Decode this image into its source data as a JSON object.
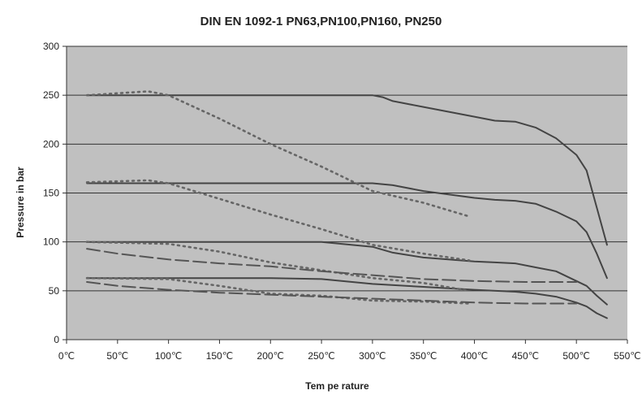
{
  "chart_data": {
    "type": "line",
    "title": "DIN EN 1092-1 PN63,PN100,PN160, PN250",
    "xlabel": "Tem pe rature",
    "ylabel": "Pressure in bar",
    "xlim": [
      0,
      550
    ],
    "ylim": [
      0,
      300
    ],
    "x_ticks": [
      0,
      50,
      100,
      150,
      200,
      250,
      300,
      350,
      400,
      450,
      500,
      550
    ],
    "x_tick_labels": [
      "0℃",
      "50℃",
      "100℃",
      "150℃",
      "200℃",
      "250℃",
      "300℃",
      "350℃",
      "400℃",
      "450℃",
      "500℃",
      "550℃"
    ],
    "y_ticks": [
      0,
      50,
      100,
      150,
      200,
      250,
      300
    ],
    "y_tick_labels": [
      "0",
      "50",
      "100",
      "150",
      "200",
      "250",
      "300"
    ],
    "grid": true,
    "background": "#c0c0c0",
    "series": [
      {
        "style": "solid",
        "color": "#444444",
        "x": [
          20,
          100,
          200,
          250,
          300,
          310,
          320,
          350,
          400,
          420,
          440,
          460,
          480,
          500,
          510,
          520,
          530
        ],
        "y": [
          250,
          250,
          250,
          250,
          250,
          248,
          244,
          238,
          228,
          224,
          223,
          217,
          206,
          189,
          173,
          135,
          97
        ]
      },
      {
        "style": "solid",
        "color": "#444444",
        "x": [
          20,
          100,
          200,
          250,
          300,
          320,
          350,
          400,
          420,
          440,
          460,
          480,
          500,
          510,
          520,
          530
        ],
        "y": [
          160,
          160,
          160,
          160,
          160,
          158,
          152,
          145,
          143,
          142,
          139,
          131,
          121,
          110,
          88,
          63
        ]
      },
      {
        "style": "solid",
        "color": "#444444",
        "x": [
          20,
          100,
          200,
          250,
          300,
          320,
          350,
          400,
          420,
          440,
          460,
          480,
          500,
          510,
          520,
          530
        ],
        "y": [
          100,
          100,
          100,
          100,
          95,
          89,
          84,
          80,
          79,
          78,
          74,
          70,
          60,
          55,
          45,
          36
        ]
      },
      {
        "style": "solid",
        "color": "#444444",
        "x": [
          20,
          100,
          200,
          250,
          300,
          350,
          400,
          440,
          460,
          480,
          500,
          510,
          520,
          530
        ],
        "y": [
          63,
          63,
          63,
          62,
          57,
          54,
          51,
          49,
          47,
          44,
          38,
          34,
          27,
          22
        ]
      },
      {
        "style": "dotted",
        "color": "#666666",
        "x": [
          20,
          50,
          80,
          100,
          150,
          200,
          250,
          300,
          350,
          395
        ],
        "y": [
          250,
          252,
          254,
          250,
          226,
          200,
          177,
          152,
          140,
          126
        ]
      },
      {
        "style": "dotted",
        "color": "#666666",
        "x": [
          20,
          50,
          80,
          100,
          150,
          200,
          250,
          300,
          350,
          395
        ],
        "y": [
          161,
          162,
          163,
          160,
          144,
          128,
          113,
          97,
          88,
          81
        ]
      },
      {
        "style": "dotted",
        "color": "#666666",
        "x": [
          20,
          100,
          150,
          200,
          250,
          300,
          350,
          395
        ],
        "y": [
          100,
          98,
          90,
          79,
          71,
          63,
          58,
          50
        ]
      },
      {
        "style": "dotted",
        "color": "#666666",
        "x": [
          20,
          100,
          150,
          200,
          250,
          300,
          350,
          395
        ],
        "y": [
          63,
          62,
          55,
          47,
          45,
          40,
          39,
          37
        ]
      },
      {
        "style": "dashed",
        "color": "#555555",
        "x": [
          20,
          50,
          100,
          150,
          200,
          250,
          300,
          350,
          400,
          450,
          500
        ],
        "y": [
          93,
          88,
          82,
          78,
          75,
          70,
          66,
          62,
          60,
          59,
          59
        ]
      },
      {
        "style": "dashed",
        "color": "#555555",
        "x": [
          20,
          50,
          100,
          150,
          200,
          250,
          300,
          350,
          400,
          450,
          500
        ],
        "y": [
          59,
          55,
          51,
          48,
          46,
          44,
          42,
          40,
          38,
          37,
          37
        ]
      }
    ]
  }
}
